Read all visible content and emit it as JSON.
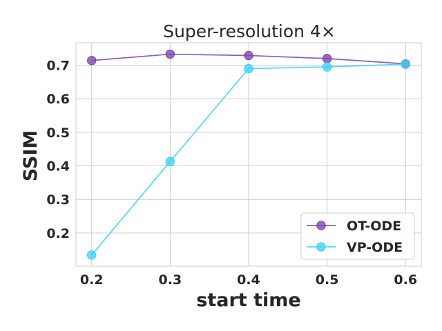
{
  "chart_data": {
    "type": "line",
    "title": "Super-resolution 4×",
    "xlabel": "start time",
    "ylabel": "SSIM",
    "x": [
      0.2,
      0.3,
      0.4,
      0.5,
      0.6
    ],
    "x_tick_labels": [
      "0.2",
      "0.3",
      "0.4",
      "0.5",
      "0.6"
    ],
    "y_ticks": [
      0.2,
      0.3,
      0.4,
      0.5,
      0.6,
      0.7
    ],
    "y_tick_labels": [
      "0.2",
      "0.3",
      "0.4",
      "0.5",
      "0.6",
      "0.7"
    ],
    "xlim": [
      0.18,
      0.62
    ],
    "ylim": [
      0.101,
      0.767
    ],
    "grid": true,
    "legend_position": "lower-right",
    "series": [
      {
        "name": "OT-ODE",
        "color": "#7b3fa8",
        "values": [
          0.714,
          0.733,
          0.729,
          0.72,
          0.704
        ]
      },
      {
        "name": "VP-ODE",
        "color": "#38d0fb",
        "values": [
          0.134,
          0.413,
          0.69,
          0.695,
          0.703
        ]
      }
    ]
  }
}
